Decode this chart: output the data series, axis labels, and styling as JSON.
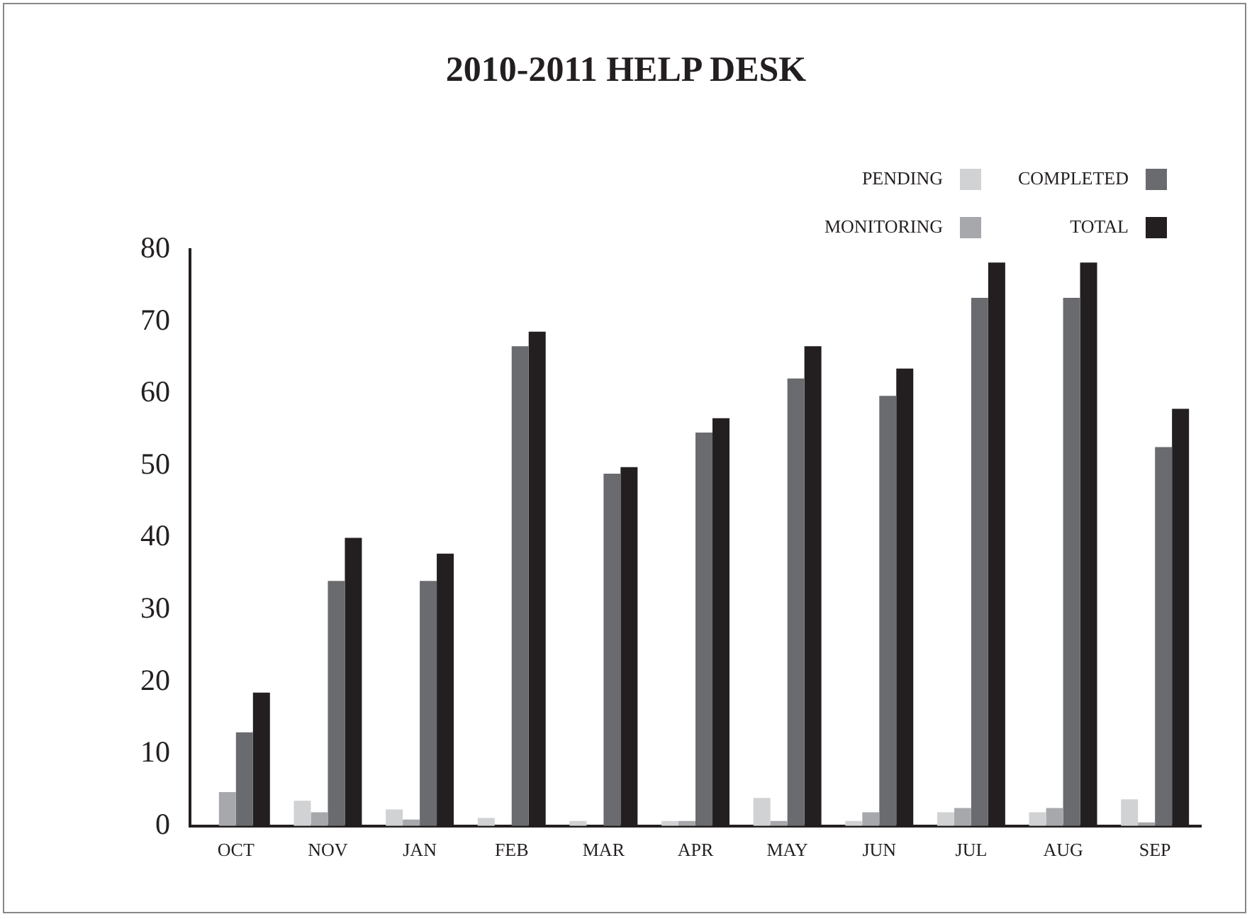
{
  "chart_data": {
    "type": "bar",
    "title": "2010-2011 HELP DESK",
    "categories": [
      "OCT",
      "NOV",
      "JAN",
      "FEB",
      "MAR",
      "APR",
      "MAY",
      "JUN",
      "JUL",
      "AUG",
      "SEP"
    ],
    "series": [
      {
        "name": "PENDING",
        "color": "#d1d2d4",
        "values": [
          0,
          3.5,
          2.3,
          1.1,
          0.7,
          0.7,
          3.9,
          0.7,
          1.9,
          1.9,
          3.7
        ]
      },
      {
        "name": "MONITORING",
        "color": "#a7a8ab",
        "values": [
          4.7,
          1.9,
          0.9,
          0,
          0,
          0.7,
          0.7,
          1.9,
          2.5,
          2.5,
          0.5
        ]
      },
      {
        "name": "COMPLETED",
        "color": "#6a6b6f",
        "values": [
          13,
          34,
          34,
          66.6,
          48.9,
          54.6,
          62.1,
          59.7,
          73.3,
          73.3,
          52.6
        ]
      },
      {
        "name": "TOTAL",
        "color": "#231f20",
        "values": [
          18.5,
          40,
          37.8,
          68.6,
          49.8,
          56.6,
          66.6,
          63.5,
          78.2,
          78.2,
          57.9
        ]
      }
    ],
    "ylim": [
      0,
      80
    ],
    "yticks": [
      0,
      10,
      20,
      30,
      40,
      50,
      60,
      70,
      80
    ],
    "grid": false,
    "legend": "top right"
  }
}
